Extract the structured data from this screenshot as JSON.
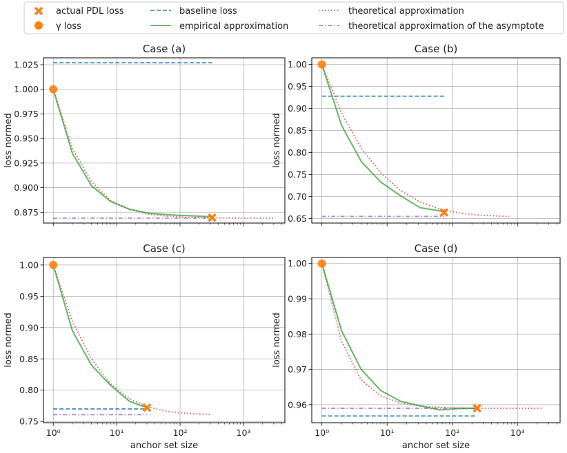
{
  "legend": {
    "items": [
      {
        "label": "actual PDL loss",
        "marker": "x-marker",
        "color": "#ff7f0e"
      },
      {
        "label": "γ loss",
        "marker": "circle-marker",
        "color": "#ff7f0e"
      },
      {
        "label": "baseline loss",
        "style": "dashed",
        "color": "#1f77b4"
      },
      {
        "label": "empirical approximation",
        "style": "solid",
        "color": "#2ca02c"
      },
      {
        "label": "theoretical approximation",
        "style": "dotted",
        "color": "#d62728"
      },
      {
        "label": "theoretical approximation of the asymptote",
        "style": "dashdot",
        "color": "#9467bd"
      }
    ]
  },
  "chart_data": [
    {
      "type": "line",
      "title": "Case (a)",
      "xlabel": "",
      "ylabel": "loss normed",
      "xscale": "log",
      "xlim": [
        0.7,
        4500
      ],
      "ylim": [
        0.864,
        1.032
      ],
      "yticks": [
        0.875,
        0.9,
        0.925,
        0.95,
        0.975,
        1.0,
        1.025
      ],
      "ytick_labels": [
        "0.875",
        "0.900",
        "0.925",
        "0.950",
        "0.975",
        "1.000",
        "1.025"
      ],
      "xticks": [
        1,
        10,
        100,
        1000
      ],
      "xtick_labels_shown": false,
      "grid": true,
      "series": [
        {
          "key": "baseline",
          "x": [
            1,
            320
          ],
          "y": [
            1.027,
            1.027
          ]
        },
        {
          "key": "asymptote",
          "x": [
            1,
            320
          ],
          "y": [
            0.869,
            0.869
          ]
        },
        {
          "key": "theoretical",
          "x": [
            1,
            2,
            4,
            8,
            16,
            32,
            64,
            128,
            256,
            512,
            1024,
            3200
          ],
          "y": [
            1.0,
            0.94,
            0.906,
            0.887,
            0.878,
            0.873,
            0.871,
            0.8698,
            0.8694,
            0.8692,
            0.869,
            0.869
          ]
        },
        {
          "key": "empirical",
          "x": [
            1,
            2,
            4,
            8,
            16,
            32,
            64,
            128,
            320
          ],
          "y": [
            1.0,
            0.935,
            0.902,
            0.886,
            0.878,
            0.874,
            0.8725,
            0.8715,
            0.8705
          ]
        },
        {
          "key": "pdl",
          "x": [
            320
          ],
          "y": [
            0.8695
          ]
        },
        {
          "key": "gamma",
          "x": [
            1
          ],
          "y": [
            1.0
          ]
        }
      ]
    },
    {
      "type": "line",
      "title": "Case (b)",
      "xlabel": "",
      "ylabel": "loss normed",
      "xscale": "log",
      "xlim": [
        0.7,
        4500
      ],
      "ylim": [
        0.64,
        1.015
      ],
      "yticks": [
        0.65,
        0.7,
        0.75,
        0.8,
        0.85,
        0.9,
        0.95,
        1.0
      ],
      "ytick_labels": [
        "0.65",
        "0.70",
        "0.75",
        "0.80",
        "0.85",
        "0.90",
        "0.95",
        "1.00"
      ],
      "xticks": [
        1,
        10,
        100,
        1000
      ],
      "xtick_labels_shown": false,
      "grid": true,
      "series": [
        {
          "key": "baseline",
          "x": [
            1,
            75
          ],
          "y": [
            0.928,
            0.928
          ]
        },
        {
          "key": "asymptote",
          "x": [
            1,
            75
          ],
          "y": [
            0.655,
            0.655
          ]
        },
        {
          "key": "theoretical",
          "x": [
            1,
            2,
            4,
            8,
            16,
            32,
            64,
            128,
            256,
            512,
            750
          ],
          "y": [
            1.0,
            0.89,
            0.81,
            0.754,
            0.714,
            0.688,
            0.672,
            0.663,
            0.658,
            0.656,
            0.655
          ]
        },
        {
          "key": "empirical",
          "x": [
            1,
            2,
            4,
            8,
            16,
            32,
            75
          ],
          "y": [
            1.0,
            0.862,
            0.78,
            0.733,
            0.702,
            0.675,
            0.666
          ]
        },
        {
          "key": "pdl",
          "x": [
            75
          ],
          "y": [
            0.664
          ]
        },
        {
          "key": "gamma",
          "x": [
            1
          ],
          "y": [
            1.0
          ]
        }
      ]
    },
    {
      "type": "line",
      "title": "Case (c)",
      "xlabel": "anchor set size",
      "ylabel": "loss normed",
      "xscale": "log",
      "xlim": [
        0.7,
        4500
      ],
      "ylim": [
        0.748,
        1.012
      ],
      "yticks": [
        0.75,
        0.8,
        0.85,
        0.9,
        0.95,
        1.0
      ],
      "ytick_labels": [
        "0.75",
        "0.80",
        "0.85",
        "0.90",
        "0.95",
        "1.00"
      ],
      "xticks": [
        1,
        10,
        100,
        1000
      ],
      "xtick_labels": [
        "10^0",
        "10^1",
        "10^2",
        "10^3"
      ],
      "grid": true,
      "series": [
        {
          "key": "baseline",
          "x": [
            1,
            30
          ],
          "y": [
            0.77,
            0.77
          ]
        },
        {
          "key": "asymptote",
          "x": [
            1,
            30
          ],
          "y": [
            0.761,
            0.761
          ]
        },
        {
          "key": "theoretical",
          "x": [
            1,
            2,
            4,
            8,
            16,
            32,
            64,
            128,
            300
          ],
          "y": [
            1.0,
            0.91,
            0.85,
            0.81,
            0.786,
            0.773,
            0.766,
            0.763,
            0.761
          ]
        },
        {
          "key": "empirical",
          "x": [
            1,
            2,
            4,
            8,
            16,
            30
          ],
          "y": [
            1.0,
            0.895,
            0.84,
            0.808,
            0.782,
            0.772
          ]
        },
        {
          "key": "pdl",
          "x": [
            30
          ],
          "y": [
            0.772
          ]
        },
        {
          "key": "gamma",
          "x": [
            1
          ],
          "y": [
            1.0
          ]
        }
      ]
    },
    {
      "type": "line",
      "title": "Case (d)",
      "xlabel": "anchor set size",
      "ylabel": "loss normed",
      "xscale": "log",
      "xlim": [
        0.7,
        4500
      ],
      "ylim": [
        0.9549,
        1.0017
      ],
      "yticks": [
        0.96,
        0.97,
        0.98,
        0.99,
        1.0
      ],
      "ytick_labels": [
        "0.96",
        "0.97",
        "0.98",
        "0.99",
        "1.00"
      ],
      "xticks": [
        1,
        10,
        100,
        1000
      ],
      "xtick_labels": [
        "10^0",
        "10^1",
        "10^2",
        "10^3"
      ],
      "grid": true,
      "series": [
        {
          "key": "baseline",
          "x": [
            1,
            240
          ],
          "y": [
            0.9568,
            0.9568
          ]
        },
        {
          "key": "asymptote",
          "x": [
            1,
            240
          ],
          "y": [
            0.959,
            0.959
          ]
        },
        {
          "key": "theoretical",
          "x": [
            1,
            2,
            4,
            8,
            16,
            32,
            64,
            128,
            256,
            512,
            1024,
            2400
          ],
          "y": [
            1.0,
            0.978,
            0.967,
            0.9625,
            0.9605,
            0.9596,
            0.9592,
            0.9591,
            0.959,
            0.959,
            0.959,
            0.959
          ]
        },
        {
          "key": "empirical",
          "x": [
            1,
            2,
            4,
            8,
            16,
            32,
            64,
            128,
            240
          ],
          "y": [
            1.0,
            0.981,
            0.97,
            0.964,
            0.961,
            0.9597,
            0.9585,
            0.9589,
            0.959
          ]
        },
        {
          "key": "pdl",
          "x": [
            240
          ],
          "y": [
            0.959
          ]
        },
        {
          "key": "gamma",
          "x": [
            1
          ],
          "y": [
            1.0
          ]
        }
      ]
    }
  ]
}
